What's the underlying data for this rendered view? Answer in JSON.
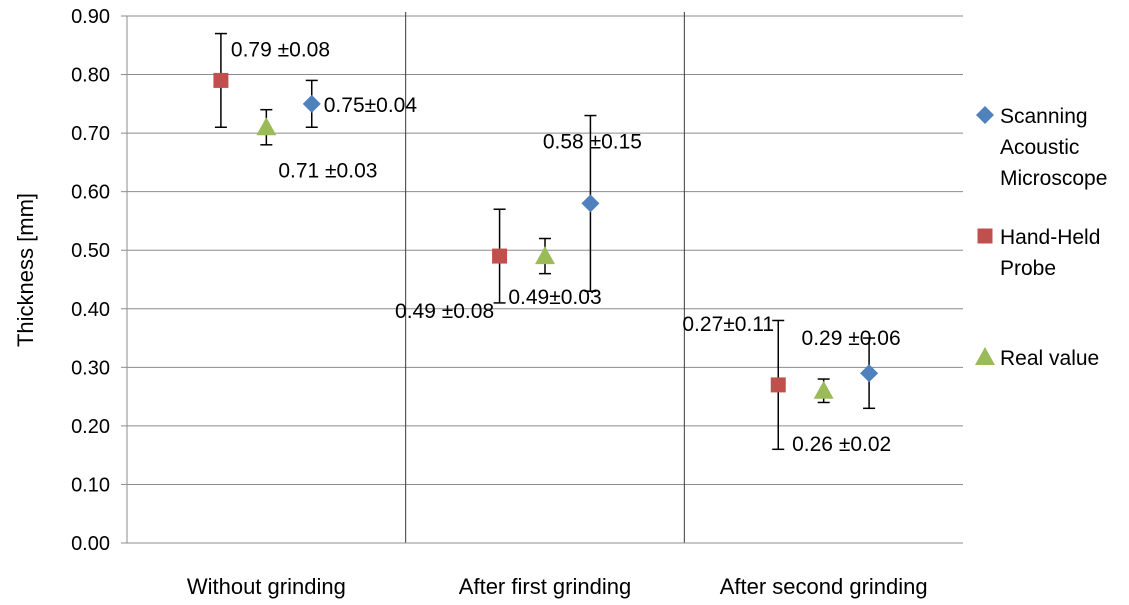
{
  "chart_data": {
    "type": "scatter",
    "ylabel": "Thickness [mm]",
    "xlabel": "",
    "ylim": [
      0,
      0.9
    ],
    "yticks": [
      "0.00",
      "0.10",
      "0.20",
      "0.30",
      "0.40",
      "0.50",
      "0.60",
      "0.70",
      "0.80",
      "0.90"
    ],
    "grid": true,
    "legend_position": "right",
    "categories": [
      "Without grinding",
      "After first grinding",
      "After second grinding"
    ],
    "series": [
      {
        "name": "Scanning Acoustic Microscope",
        "marker": "diamond",
        "color": "#4F81BD",
        "values": [
          0.75,
          0.58,
          0.29
        ],
        "errors": [
          0.04,
          0.15,
          0.06
        ],
        "labels": [
          "0.75±0.04",
          "0.58 ±0.15",
          "0.29 ±0.06"
        ]
      },
      {
        "name": "Hand-Held Probe",
        "marker": "square",
        "color": "#C0504D",
        "values": [
          0.79,
          0.49,
          0.27
        ],
        "errors": [
          0.08,
          0.08,
          0.11
        ],
        "labels": [
          "0.79 ±0.08",
          "0.49 ±0.08",
          "0.27±0.11"
        ]
      },
      {
        "name": "Real value",
        "marker": "triangle",
        "color": "#9BBB59",
        "values": [
          0.71,
          0.49,
          0.26
        ],
        "errors": [
          0.03,
          0.03,
          0.02
        ],
        "labels": [
          "0.71 ±0.03",
          "0.49±0.03",
          "0.26 ±0.02"
        ]
      }
    ],
    "legend": {
      "sam_lines": [
        "Scanning",
        "Acoustic",
        "Microscope"
      ],
      "hhp_lines": [
        "Hand-Held",
        "Probe"
      ],
      "real_lines": [
        "Real value"
      ]
    }
  }
}
